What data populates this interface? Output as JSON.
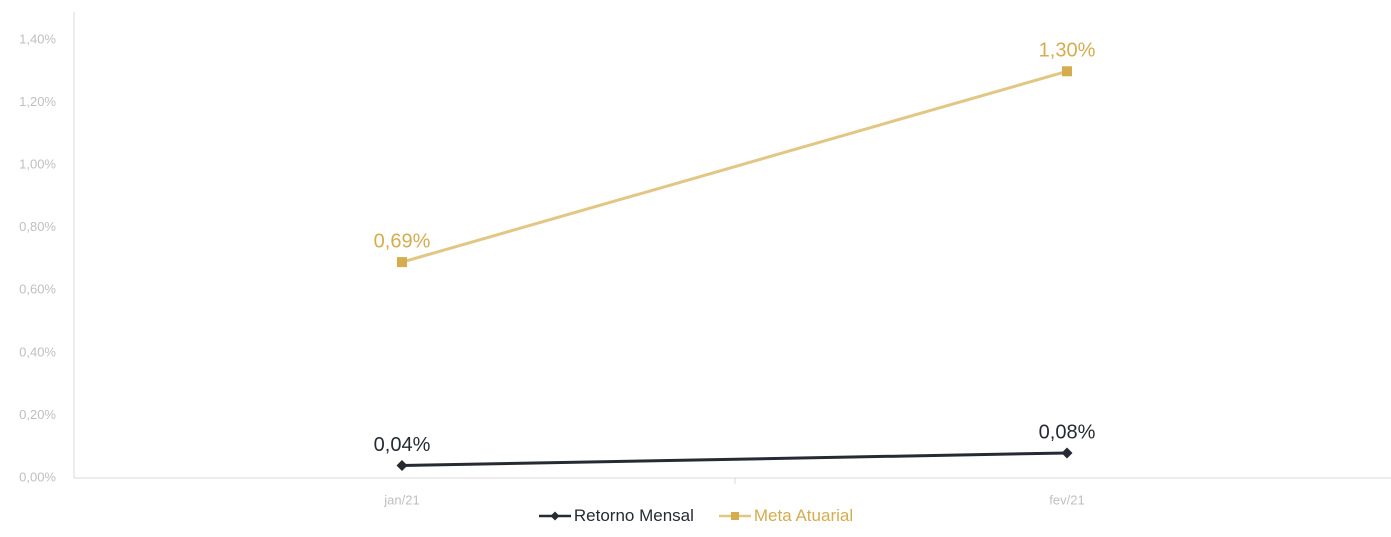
{
  "chart_data": {
    "type": "line",
    "title": "",
    "xlabel": "",
    "ylabel": "",
    "categories": [
      "jan/21",
      "fev/21"
    ],
    "ylim": [
      0,
      1.5
    ],
    "yticks": [
      0,
      0.2,
      0.4,
      0.6,
      0.8,
      1.0,
      1.2,
      1.4
    ],
    "ytick_labels": [
      "0,00%",
      "0,20%",
      "0,40%",
      "0,60%",
      "0,80%",
      "1,00%",
      "1,20%",
      "1,40%"
    ],
    "grid": false,
    "legend_position": "bottom",
    "series": [
      {
        "name": "Retorno Mensal",
        "values": [
          0.04,
          0.08
        ],
        "labels": [
          "0,04%",
          "0,08%"
        ],
        "color": "#262b33",
        "marker": "diamond-icon"
      },
      {
        "name": "Meta Atuarial",
        "values": [
          0.69,
          1.3
        ],
        "labels": [
          "0,69%",
          "1,30%"
        ],
        "color": "#d5ac4e",
        "line_color": "#e2c784",
        "marker": "square-icon"
      }
    ]
  }
}
